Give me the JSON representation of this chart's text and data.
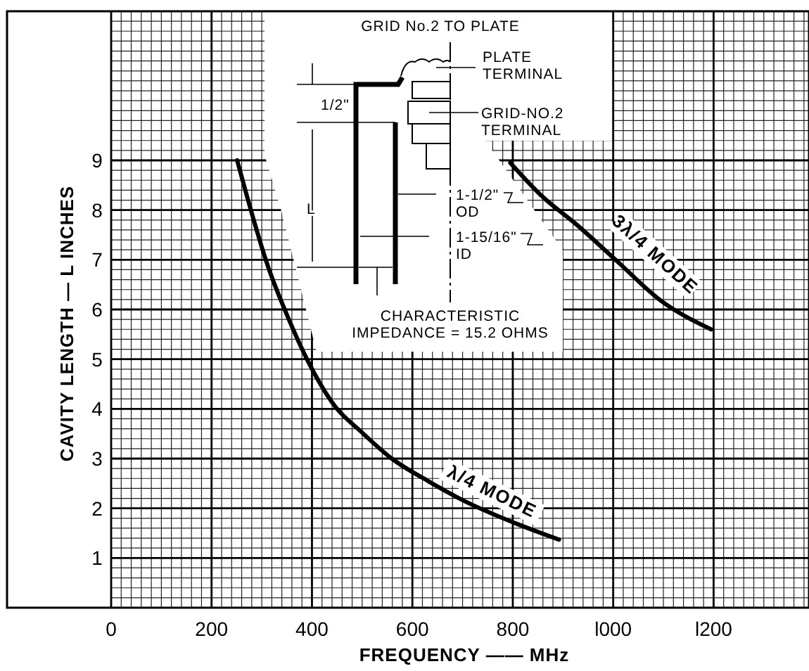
{
  "chart_data": {
    "type": "line",
    "xlabel": "FREQUENCY —— MHz",
    "ylabel": "CAVITY LENGTH — L INCHES",
    "xlim": [
      0,
      1390
    ],
    "ylim": [
      0,
      12
    ],
    "xticks": [
      0,
      200,
      400,
      600,
      800,
      {
        "value": 1000,
        "label": "l000"
      },
      {
        "value": 1200,
        "label": "l200"
      }
    ],
    "yticks": [
      1,
      2,
      3,
      4,
      5,
      6,
      7,
      8,
      9
    ],
    "grid": true,
    "marker": "none",
    "line_style": "solid",
    "series": [
      {
        "name": "λ/4 MODE",
        "color": "#000000",
        "x": [
          251,
          313,
          354,
          395,
          446,
          497,
          559,
          631,
          703,
          805,
          892
        ],
        "values": [
          9.0,
          6.85,
          5.8,
          4.9,
          4.05,
          3.55,
          3.0,
          2.55,
          2.15,
          1.7,
          1.37
        ]
      },
      {
        "name": "3λ/4 MODE",
        "color": "#000000",
        "x": [
          795,
          856,
          928,
          1010,
          1092,
          1195
        ],
        "values": [
          8.95,
          8.3,
          7.7,
          6.95,
          6.2,
          5.6
        ]
      }
    ],
    "annotations": [
      "GRID No.2 TO PLATE",
      "PLATE TERMINAL",
      "GRID-NO.2 TERMINAL",
      "1/2\"",
      "L",
      "1-1/2\" OD",
      "1-15/16\" ID",
      "CHARACTERISTIC IMPEDANCE = 15.2 OHMS"
    ]
  }
}
